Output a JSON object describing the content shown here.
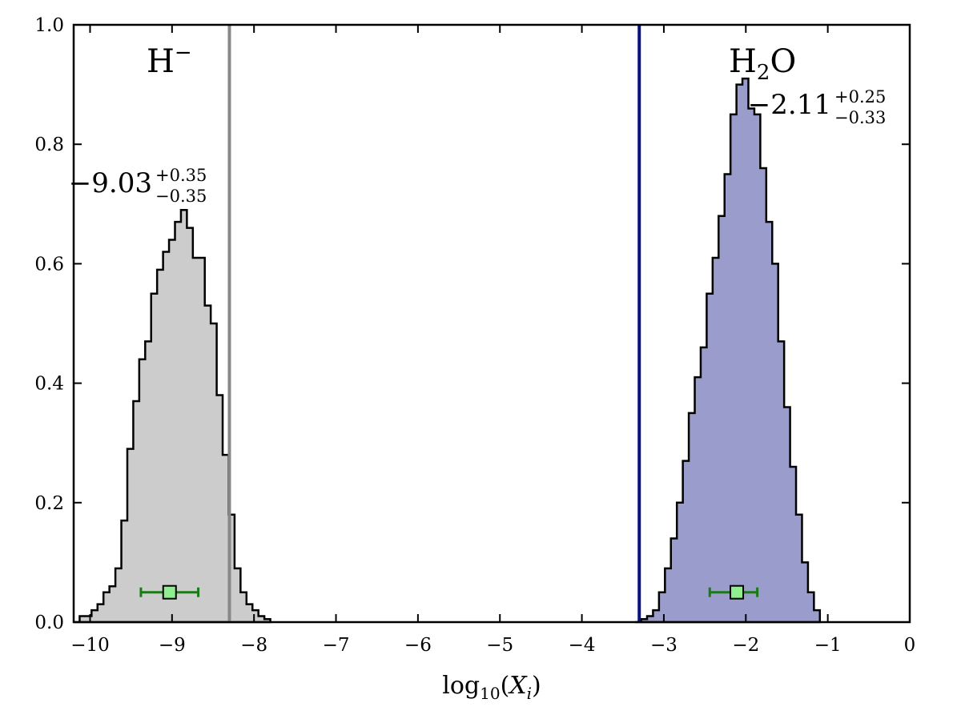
{
  "chart_data": {
    "type": "histogram",
    "xlabel": {
      "base": "log",
      "sub": "10",
      "arg_open": "(",
      "arg_var": "X",
      "arg_sub": "i",
      "arg_close": ")"
    },
    "xlim": [
      -10.2,
      0
    ],
    "ylim": [
      0,
      1.0
    ],
    "x_ticks": [
      -10,
      -9,
      -8,
      -7,
      -6,
      -5,
      -4,
      -3,
      -2,
      -1,
      0
    ],
    "x_tick_labels": [
      "−10",
      "−9",
      "−8",
      "−7",
      "−6",
      "−5",
      "−4",
      "−3",
      "−2",
      "−1",
      "0"
    ],
    "y_ticks": [
      0,
      0.2,
      0.4,
      0.6,
      0.8,
      1.0
    ],
    "y_tick_labels": [
      "0.0",
      "0.2",
      "0.4",
      "0.6",
      "0.8",
      "1.0"
    ],
    "grid": false,
    "series": [
      {
        "name": "H⁻",
        "name_parts": {
          "main": "H",
          "sup": "−"
        },
        "fill_color": "#cccccc",
        "line_color": "#888888",
        "bin_start": -10.2,
        "bin_width": 0.0727,
        "heights": [
          0.0,
          0.01,
          0.01,
          0.02,
          0.03,
          0.05,
          0.06,
          0.09,
          0.17,
          0.29,
          0.37,
          0.44,
          0.47,
          0.55,
          0.59,
          0.62,
          0.64,
          0.67,
          0.69,
          0.66,
          0.61,
          0.61,
          0.53,
          0.5,
          0.38,
          0.28,
          0.18,
          0.09,
          0.05,
          0.03,
          0.02,
          0.01,
          0.005
        ],
        "vertical_line_x": -8.3,
        "median": -9.03,
        "err_plus": 0.35,
        "err_minus": 0.35,
        "annotation": {
          "value": "−9.03",
          "plus": "+0.35",
          "minus": "−0.35"
        }
      },
      {
        "name": "H₂O",
        "name_parts": {
          "pre": "H",
          "sub": "2",
          "post": "O"
        },
        "fill_color": "#9a9ccb",
        "line_color": "#0a127d",
        "bin_start": -3.35,
        "bin_width": 0.0727,
        "heights": [
          0.0,
          0.005,
          0.01,
          0.02,
          0.05,
          0.09,
          0.14,
          0.2,
          0.27,
          0.35,
          0.41,
          0.46,
          0.55,
          0.61,
          0.68,
          0.75,
          0.85,
          0.9,
          0.91,
          0.86,
          0.85,
          0.76,
          0.67,
          0.6,
          0.47,
          0.36,
          0.26,
          0.18,
          0.1,
          0.05,
          0.02
        ],
        "vertical_line_x": -3.3,
        "median": -2.11,
        "err_plus": 0.25,
        "err_minus": 0.33,
        "annotation": {
          "value": "−2.11",
          "plus": "+0.25",
          "minus": "−0.33"
        }
      }
    ],
    "marker": {
      "y": 0.05,
      "color": "#90ee90",
      "edge": "#000000",
      "errorbar_color": "#1a7a1a"
    }
  }
}
